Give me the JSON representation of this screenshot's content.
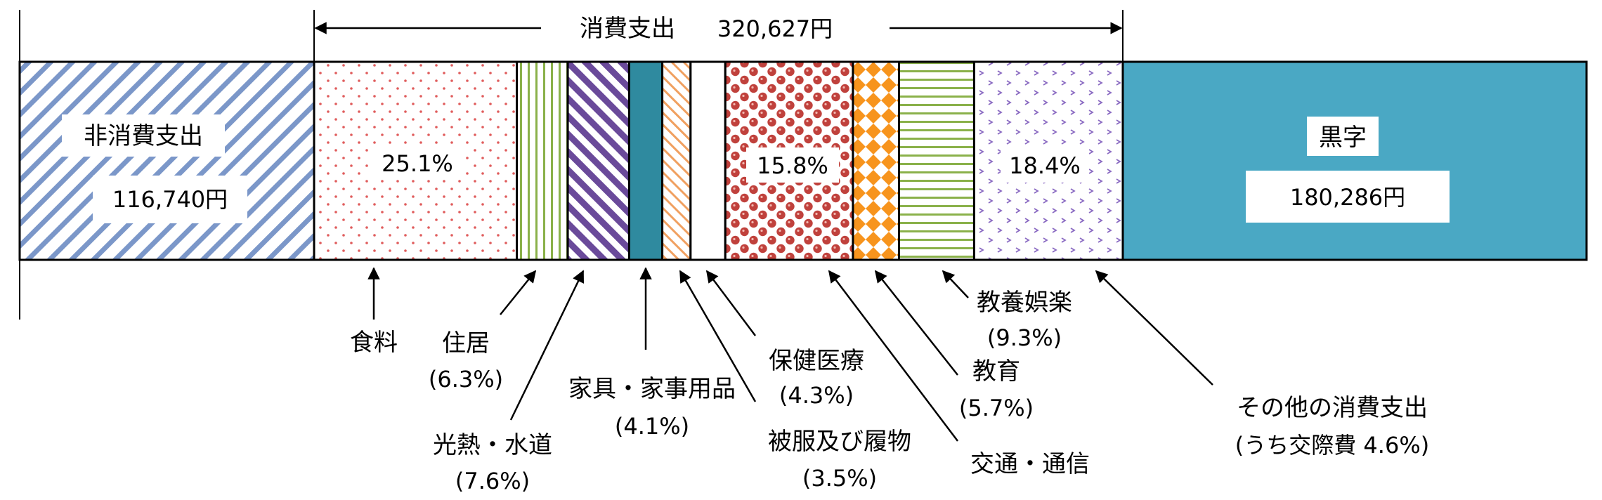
{
  "chart_data": {
    "type": "bar",
    "stacked": "horizontal-100-percent",
    "header": {
      "label": "消費支出",
      "amount": "320,627円"
    },
    "segments": [
      {
        "key": "non",
        "name": "非消費支出",
        "value_text": "116,740円",
        "value": 116740,
        "pattern": "hatch-blue",
        "color": "#7b97c9"
      },
      {
        "key": "food",
        "name": "食料",
        "pct_text": "25.1%",
        "pct": 25.1,
        "pattern": "dots-red",
        "color": "#e05c5c"
      },
      {
        "key": "housing",
        "name": "住居",
        "pct_text": "(6.3%)",
        "pct": 6.3,
        "pattern": "vlines-green",
        "color": "#8ab14a"
      },
      {
        "key": "utilities",
        "name": "光熱・水道",
        "pct_text": "(7.6%)",
        "pct": 7.6,
        "pattern": "hatch-purple",
        "color": "#6a4a9a"
      },
      {
        "key": "furniture",
        "name": "家具・家事用品",
        "pct_text": "(4.1%)",
        "pct": 4.1,
        "pattern": "solid-teal",
        "color": "#2f8a9f"
      },
      {
        "key": "clothing",
        "name": "被服及び履物",
        "pct_text": "(3.5%)",
        "pct": 3.5,
        "pattern": "hatch-orange",
        "color": "#f0a060"
      },
      {
        "key": "medical",
        "name": "保健医療",
        "pct_text": "(4.3%)",
        "pct": 4.3,
        "pattern": "white",
        "color": "#ffffff"
      },
      {
        "key": "transport",
        "name": "交通・通信",
        "pct_text": "15.8%",
        "pct": 15.8,
        "pattern": "circles-red",
        "color": "#c0413c"
      },
      {
        "key": "education",
        "name": "教育",
        "pct_text": "(5.7%)",
        "pct": 5.7,
        "pattern": "diamonds-orange",
        "color": "#f7941d"
      },
      {
        "key": "recreation",
        "name": "教養娯楽",
        "pct_text": "(9.3%)",
        "pct": 9.3,
        "pattern": "hlines-green",
        "color": "#8ab14a"
      },
      {
        "key": "other",
        "name": "その他の消費支出",
        "pct_text": "18.4%",
        "sub_text": "(うち交際費 4.6%)",
        "pct": 18.4,
        "pattern": "chevrons-purple",
        "color": "#8a6ac2"
      },
      {
        "key": "surplus",
        "name": "黒字",
        "value_text": "180,286円",
        "value": 180286,
        "pattern": "solid-cyan",
        "color": "#4aa8c4"
      }
    ]
  }
}
